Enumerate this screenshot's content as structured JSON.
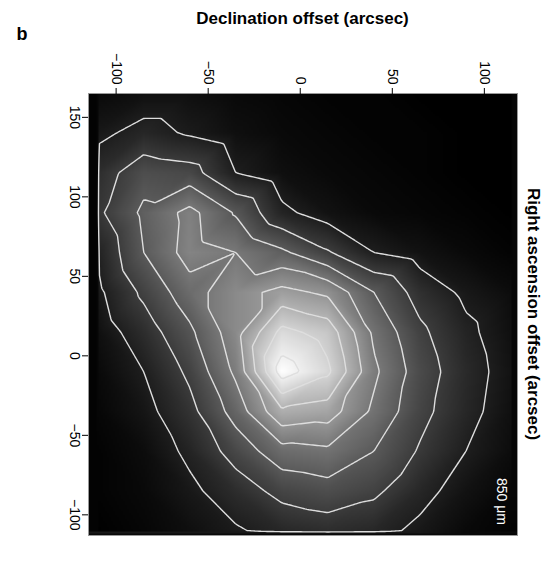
{
  "chart_data": {
    "type": "contour",
    "panel_label": "b",
    "annotations": [
      "850 μm"
    ],
    "xlabel": "Declination offset (arcsec)",
    "ylabel": "Right ascension offset (arcsec)",
    "xlim": [
      -115,
      118
    ],
    "ylim": [
      -113,
      165
    ],
    "xticks": [
      -100,
      -50,
      0,
      50,
      100
    ],
    "yticks": [
      150,
      100,
      50,
      0,
      -50,
      -100
    ],
    "contour_levels": [
      1,
      2,
      3,
      4,
      5,
      6,
      7,
      8
    ],
    "x": [
      -110,
      -85,
      -60,
      -35,
      -10,
      15,
      40,
      65,
      90,
      115
    ],
    "y": [
      165,
      140,
      115,
      90,
      65,
      40,
      15,
      -10,
      -35,
      -60,
      -85,
      -110
    ],
    "intensity": [
      [
        0.3,
        0.5,
        0.5,
        0.3,
        0.2,
        0.1,
        0.1,
        0,
        0,
        0
      ],
      [
        0.8,
        1.3,
        0.9,
        0.5,
        0.3,
        0.2,
        0.1,
        0.1,
        0,
        0
      ],
      [
        1.5,
        2.6,
        2.4,
        1.0,
        0.5,
        0.3,
        0.2,
        0.1,
        0,
        0
      ],
      [
        1.8,
        3.2,
        4.3,
        2.9,
        1.2,
        0.6,
        0.3,
        0.2,
        0.1,
        0
      ],
      [
        1.1,
        3.0,
        4.4,
        4.0,
        3.2,
        2.1,
        1.0,
        0.6,
        0.3,
        0.1
      ],
      [
        0.8,
        2.2,
        3.6,
        4.6,
        5.3,
        4.8,
        3.0,
        1.6,
        0.8,
        0.4
      ],
      [
        0.5,
        1.5,
        2.8,
        4.6,
        7.3,
        6.6,
        3.8,
        2.2,
        1.2,
        0.5
      ],
      [
        0.3,
        1.0,
        2.2,
        4.2,
        8.5,
        7.2,
        4.2,
        2.5,
        1.4,
        0.6
      ],
      [
        0.2,
        0.7,
        1.7,
        3.4,
        5.8,
        5.5,
        3.8,
        2.3,
        1.3,
        0.5
      ],
      [
        0.1,
        0.4,
        1.2,
        2.4,
        3.6,
        3.8,
        3.0,
        1.9,
        1.0,
        0.4
      ],
      [
        0.1,
        0.3,
        0.8,
        1.5,
        2.3,
        2.6,
        2.2,
        1.3,
        0.6,
        0.2
      ],
      [
        0,
        0.2,
        0.5,
        0.9,
        1.3,
        1.5,
        1.3,
        0.8,
        0.3,
        0.1
      ]
    ]
  }
}
